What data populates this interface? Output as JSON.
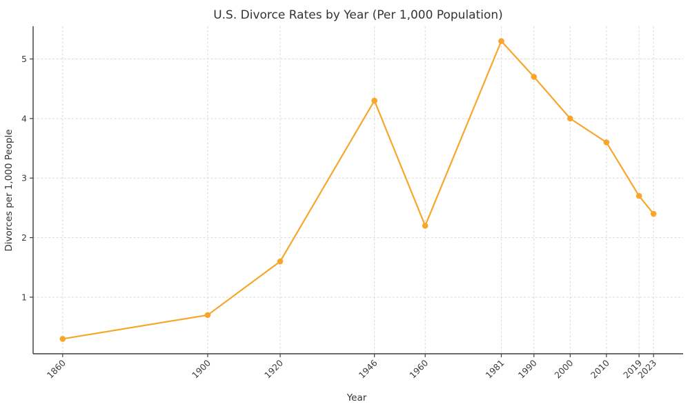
{
  "chart_data": {
    "type": "line",
    "title": "U.S. Divorce Rates by Year (Per 1,000 Population)",
    "xlabel": "Year",
    "ylabel": "Divorces per 1,000 People",
    "x": [
      1860,
      1900,
      1920,
      1946,
      1960,
      1981,
      1990,
      2000,
      2010,
      2019,
      2023
    ],
    "values": [
      0.3,
      0.7,
      1.6,
      4.3,
      2.2,
      5.3,
      4.7,
      4.0,
      3.6,
      2.7,
      2.4
    ],
    "xtick_labels": [
      "1860",
      "1900",
      "1920",
      "1946",
      "1960",
      "1981",
      "1990",
      "2000",
      "2010",
      "2019",
      "2023"
    ],
    "ytick_values": [
      1,
      2,
      3,
      4,
      5
    ],
    "ytick_labels": [
      "1",
      "2",
      "3",
      "4",
      "5"
    ],
    "xlim": [
      1851.85,
      2031.15
    ],
    "ylim": [
      0.05,
      5.55
    ],
    "grid": "on",
    "grid_style": "dashed",
    "legend": "none",
    "marker": "circle"
  },
  "colors": {
    "series": "#F7A62B",
    "grid": "#D9D9D9",
    "spine": "#3B3B3B",
    "text": "#333333",
    "background": "#FFFFFF"
  }
}
